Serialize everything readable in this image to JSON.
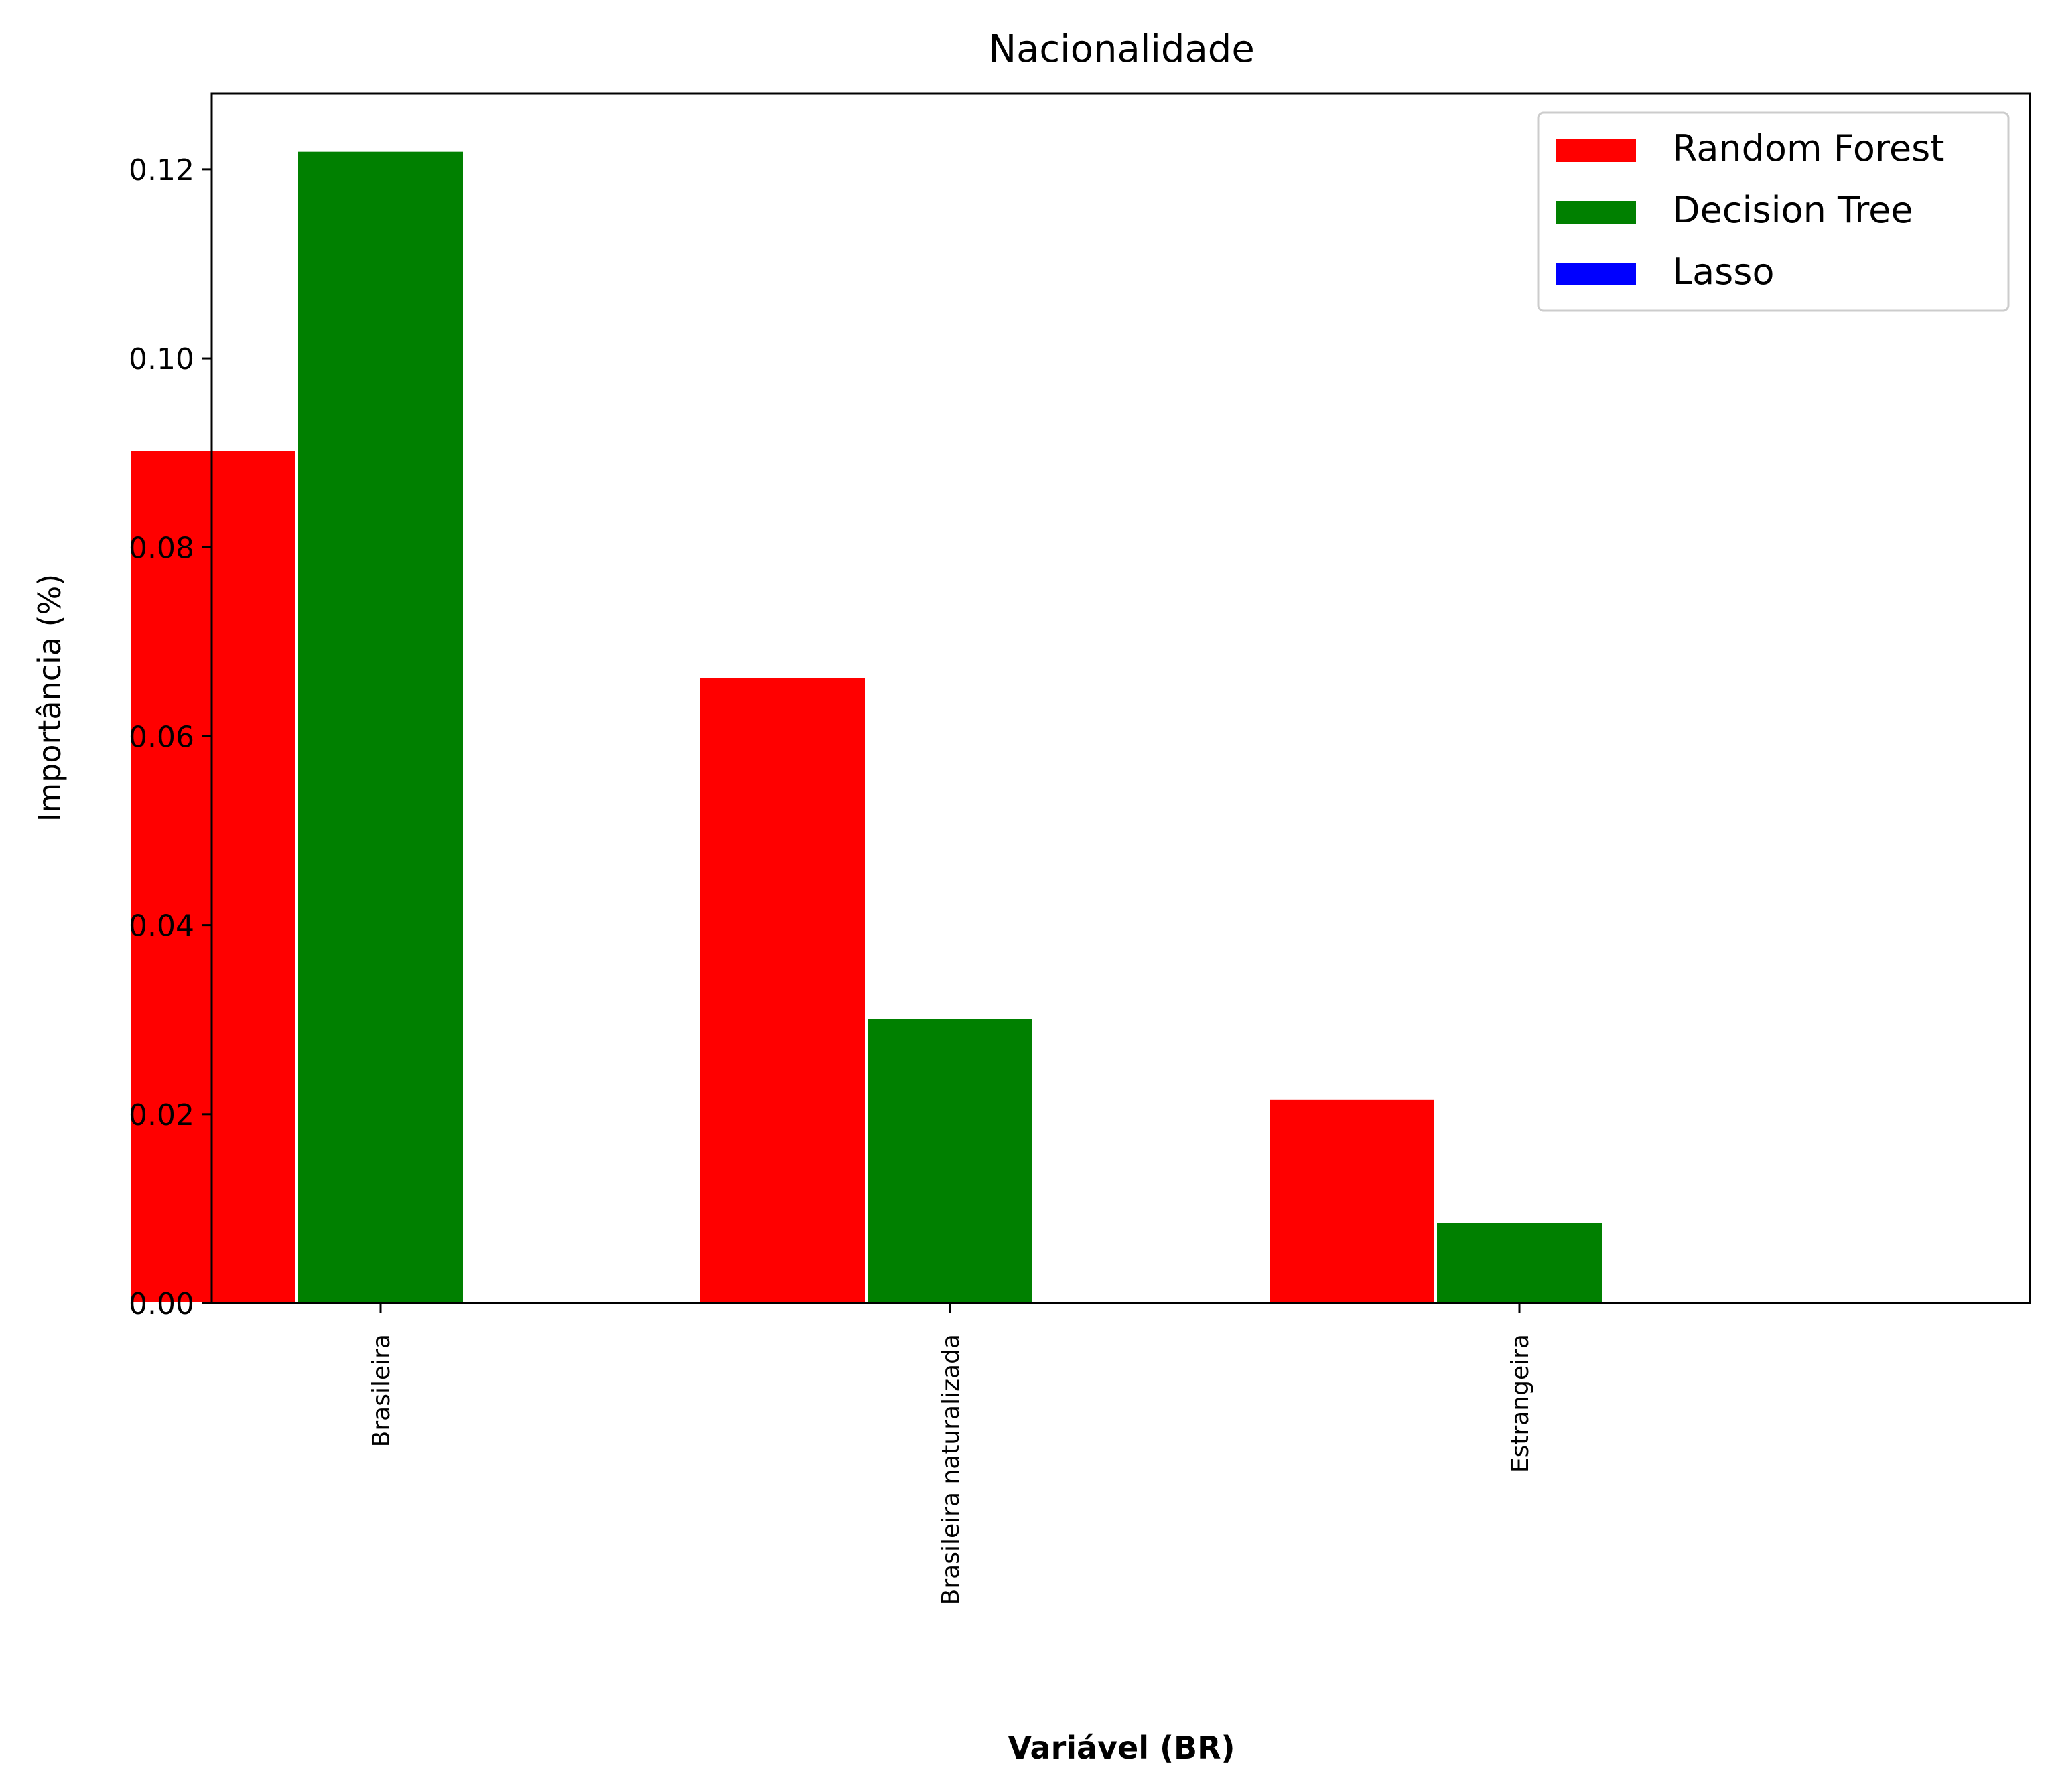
{
  "chart_data": {
    "type": "bar",
    "title": "Nacionalidade",
    "xlabel": "Variável (BR)",
    "ylabel": "Importância (%)",
    "categories": [
      "Brasileira",
      "Brasileira naturalizada",
      "Estrangeira"
    ],
    "series": [
      {
        "name": "Random Forest",
        "color": "#ff0000",
        "values": [
          0.0903,
          0.0663,
          0.0217
        ]
      },
      {
        "name": "Decision Tree",
        "color": "#008000",
        "values": [
          0.122,
          0.0302,
          0.0086
        ]
      },
      {
        "name": "Lasso",
        "color": "#0000ff",
        "values": [
          0.0,
          0.0,
          0.0
        ]
      }
    ],
    "ylim": [
      0,
      0.128
    ],
    "yticks": [
      "0.00",
      "0.02",
      "0.04",
      "0.06",
      "0.08",
      "0.10",
      "0.12"
    ],
    "ytick_values": [
      0,
      0.02,
      0.04,
      0.06,
      0.08,
      0.1,
      0.12
    ],
    "grid": false,
    "legend_position": "top-right"
  }
}
